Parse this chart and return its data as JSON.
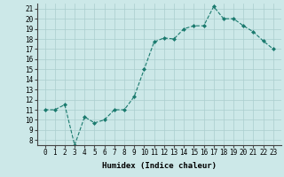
{
  "title": "",
  "xlabel": "Humidex (Indice chaleur)",
  "ylabel": "",
  "x": [
    0,
    1,
    2,
    3,
    4,
    5,
    6,
    7,
    8,
    9,
    10,
    11,
    12,
    13,
    14,
    15,
    16,
    17,
    18,
    19,
    20,
    21,
    22,
    23
  ],
  "y": [
    11,
    11,
    11.5,
    7.5,
    10.3,
    9.7,
    10,
    11,
    11,
    12.3,
    15,
    17.7,
    18.1,
    18,
    19,
    19.3,
    19.3,
    21.2,
    20,
    20,
    19.3,
    18.7,
    17.8,
    17
  ],
  "ylim": [
    7.5,
    21.5
  ],
  "yticks": [
    8,
    9,
    10,
    11,
    12,
    13,
    14,
    15,
    16,
    17,
    18,
    19,
    20,
    21
  ],
  "xticks": [
    0,
    1,
    2,
    3,
    4,
    5,
    6,
    7,
    8,
    9,
    10,
    11,
    12,
    13,
    14,
    15,
    16,
    17,
    18,
    19,
    20,
    21,
    22,
    23
  ],
  "line_color": "#1a7a6e",
  "marker": "D",
  "marker_size": 2.0,
  "bg_color": "#cce8e8",
  "grid_color": "#aacece",
  "xlabel_fontsize": 6.5,
  "tick_fontsize": 5.5
}
